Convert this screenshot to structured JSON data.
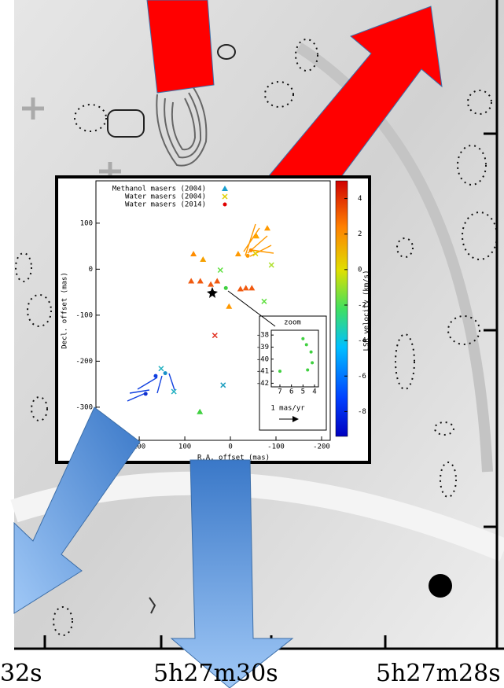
{
  "chart_data": {
    "type": "scatter",
    "xlabel": "R.A. offset (mas)",
    "ylabel": "Decl. offset (mas)",
    "xlim": [
      295,
      -219
    ],
    "ylim": [
      -372,
      192
    ],
    "xticks": [
      200,
      100,
      0,
      -100,
      -200
    ],
    "yticks": [
      100,
      0,
      -100,
      -200,
      -300
    ],
    "colorbar": {
      "label": "LSR velocity (km/s)",
      "lim": [
        -9.4,
        5.0
      ],
      "ticks": [
        4,
        2,
        0,
        -2,
        -4,
        -6,
        -8
      ]
    },
    "series": [
      {
        "name": "Methanol masers (2004)",
        "marker": "triangle",
        "color": "#1a9fcf",
        "x": [
          81,
          60,
          86,
          66,
          43,
          29,
          -22,
          -34,
          -47,
          3,
          67,
          -17,
          -57,
          -81
        ],
        "y": [
          33,
          21,
          -26,
          -26,
          -33,
          -26,
          -43,
          -41,
          -41,
          -81,
          -310,
          33,
          72,
          89
        ],
        "point_colors": [
          "#ff8c00",
          "#f5a000",
          "#f05a10",
          "#f05a10",
          "#f05a10",
          "#f05a10",
          "#f05a10",
          "#f05a10",
          "#f05a10",
          "#ff9900",
          "#40d040",
          "#ff9900",
          "#ffa500",
          "#ff9900"
        ]
      },
      {
        "name": "Water masers (2004)",
        "marker": "cross",
        "color": "#e0d000",
        "x": [
          22,
          -74,
          34,
          16,
          124,
          152,
          -90,
          -55
        ],
        "y": [
          -2,
          -70,
          -144,
          -252,
          -266,
          -216,
          9,
          34
        ],
        "point_colors": [
          "#60e040",
          "#60e040",
          "#e03020",
          "#20a0c0",
          "#20b0c0",
          "#20b0c0",
          "#b0e030",
          "#e0d000"
        ]
      },
      {
        "name": "Water masers (2014)",
        "marker": "dot",
        "color": "#e00000",
        "x": [
          10,
          143,
          164,
          186,
          -45,
          -38
        ],
        "y": [
          -41,
          -226,
          -232,
          -271,
          41,
          29
        ],
        "point_colors": [
          "#40d040",
          "#1890c8",
          "#1040e0",
          "#1030d0",
          "#ff8800",
          "#ff9900"
        ]
      }
    ],
    "zoom": {
      "title": "zoom",
      "xlim": [
        7.75,
        3.66
      ],
      "ylim": [
        -42.3,
        -37.6
      ],
      "xticks": [
        7,
        6,
        5,
        4
      ],
      "yticks": [
        -38,
        -39,
        -40,
        -41,
        -42
      ],
      "x": [
        7,
        5,
        4.7,
        4.3,
        4.2,
        4.6
      ],
      "y": [
        -41,
        -38.3,
        -38.8,
        -39.4,
        -40.3,
        -40.9
      ],
      "color": "#40d040"
    },
    "scale_label": "1 mas/yr",
    "bottom_axis_labels": [
      "32s",
      "5h27m30s",
      "5h27m28s"
    ]
  }
}
